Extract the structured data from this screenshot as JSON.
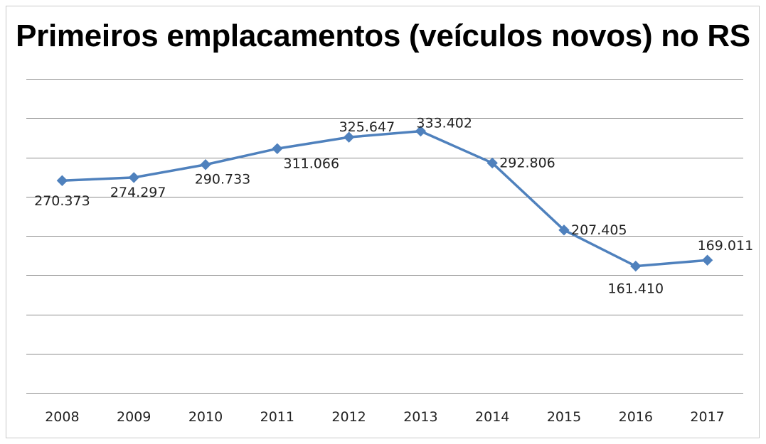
{
  "chart_data": {
    "type": "line",
    "title": "Primeiros emplacamentos (veículos novos) no RS",
    "xlabel": "",
    "ylabel": "",
    "categories": [
      "2008",
      "2009",
      "2010",
      "2011",
      "2012",
      "2013",
      "2014",
      "2015",
      "2016",
      "2017"
    ],
    "series": [
      {
        "name": "Primeiros emplacamentos",
        "values": [
          270373,
          274297,
          290733,
          311066,
          325647,
          333402,
          292806,
          207405,
          161410,
          169011
        ],
        "labels": [
          "270.373",
          "274.297",
          "290.733",
          "311.066",
          "325.647",
          "333.402",
          "292.806",
          "207.405",
          "161.410",
          "169.011"
        ],
        "color": "#4F81BD"
      }
    ],
    "ylim": [
      0,
      400000
    ],
    "grid": true,
    "legend": "none"
  }
}
